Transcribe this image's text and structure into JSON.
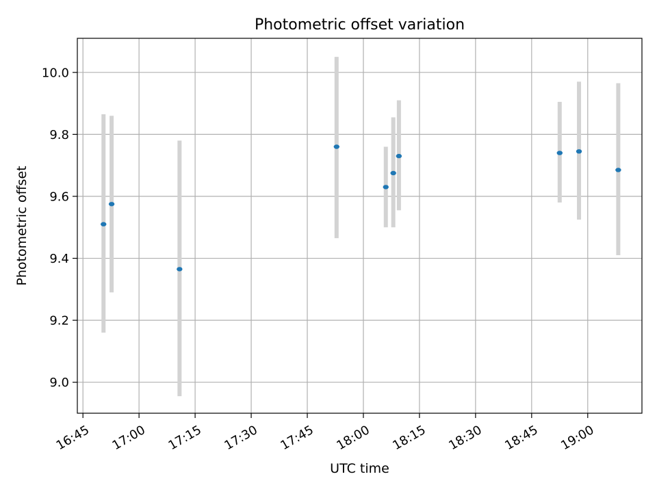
{
  "chart_data": {
    "type": "scatter",
    "title": "Photometric offset variation",
    "xlabel": "UTC time",
    "ylabel": "Photometric offset",
    "x_ticks": [
      "16:45",
      "17:00",
      "17:15",
      "17:30",
      "17:45",
      "18:00",
      "18:15",
      "18:30",
      "18:45",
      "19:00"
    ],
    "x_range": [
      "16:43:30",
      "19:14:30"
    ],
    "ylim": [
      8.9,
      10.11
    ],
    "y_ticks": [
      9.0,
      9.2,
      9.4,
      9.6,
      9.8,
      10.0
    ],
    "grid": true,
    "legend": "none",
    "colors": {
      "point": "#1f77b4",
      "errorbar": "#d3d3d3",
      "grid": "#b0b0b0",
      "axes": "#000000"
    },
    "series": [
      {
        "points": [
          {
            "x": "16:50:30",
            "y": 9.51,
            "yerr_low": 9.16,
            "yerr_high": 9.865
          },
          {
            "x": "16:52:40",
            "y": 9.575,
            "yerr_low": 9.29,
            "yerr_high": 9.86
          },
          {
            "x": "17:10:50",
            "y": 9.365,
            "yerr_low": 8.955,
            "yerr_high": 9.78
          },
          {
            "x": "17:52:50",
            "y": 9.76,
            "yerr_low": 9.465,
            "yerr_high": 10.05
          },
          {
            "x": "18:06:00",
            "y": 9.63,
            "yerr_low": 9.5,
            "yerr_high": 9.76
          },
          {
            "x": "18:08:00",
            "y": 9.675,
            "yerr_low": 9.5,
            "yerr_high": 9.855
          },
          {
            "x": "18:09:30",
            "y": 9.73,
            "yerr_low": 9.555,
            "yerr_high": 9.91
          },
          {
            "x": "18:52:30",
            "y": 9.74,
            "yerr_low": 9.58,
            "yerr_high": 9.905
          },
          {
            "x": "18:57:40",
            "y": 9.745,
            "yerr_low": 9.525,
            "yerr_high": 9.97
          },
          {
            "x": "19:08:10",
            "y": 9.685,
            "yerr_low": 9.41,
            "yerr_high": 9.965
          }
        ]
      }
    ]
  }
}
